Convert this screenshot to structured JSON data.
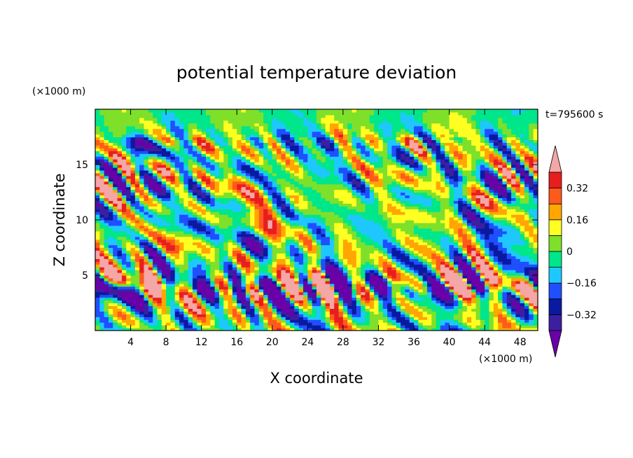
{
  "chart_data": {
    "type": "heatmap",
    "title": "potential temperature deviation",
    "xlabel": "X coordinate",
    "ylabel": "Z coordinate",
    "x_unit": "(×1000 m)",
    "z_unit": "(×1000 m)",
    "time_label": "t=795600 s",
    "xlim": [
      0,
      50
    ],
    "ylim": [
      0,
      20
    ],
    "xticks": [
      4,
      8,
      12,
      16,
      20,
      24,
      28,
      32,
      36,
      40,
      44,
      48
    ],
    "yticks": [
      5,
      10,
      15
    ],
    "colorbar": {
      "levels": [
        -0.4,
        -0.32,
        -0.24,
        -0.16,
        -0.08,
        0,
        0.08,
        0.16,
        0.24,
        0.32,
        0.4
      ],
      "labeled_levels": [
        0.32,
        0.16,
        0,
        -0.16,
        -0.32
      ],
      "labels": [
        "0.32",
        "0.16",
        "0",
        "−0.16",
        "−0.32"
      ],
      "colors": [
        "#6a00a8",
        "#3c1fa0",
        "#0a1aa0",
        "#1f4fff",
        "#1ec8ff",
        "#00e68a",
        "#7fe02a",
        "#ffff22",
        "#ffa600",
        "#ff5a1e",
        "#e81e1e",
        "#f5a6a6"
      ],
      "extend": "both"
    },
    "field_description": "turbulent field; strongest anomalies (pink / purple lenses) along z≈3–5 km; mixed small-scale eddies 5–17 km; weak near-zero values (green / yellow) above 17 km"
  }
}
